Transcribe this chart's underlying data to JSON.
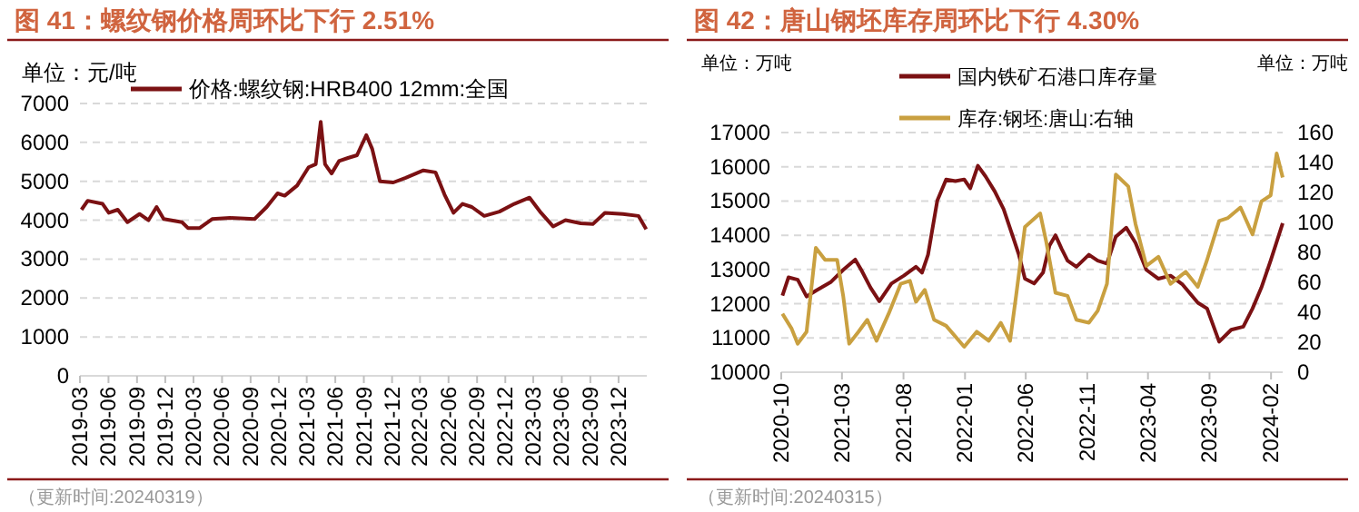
{
  "chart_data": [
    {
      "type": "line",
      "title": "图 41：螺纹钢价格周环比下行 2.51%",
      "ylabel": "单位：元/吨",
      "annotations": [
        "（更新时间:20240319）"
      ],
      "legend": "top",
      "grid": "y",
      "xlim": [
        "2019-03-01",
        "2024-03-01"
      ],
      "xticks": [
        "2019-03",
        "2019-06",
        "2019-09",
        "2019-12",
        "2020-03",
        "2020-06",
        "2020-09",
        "2020-12",
        "2021-03",
        "2021-06",
        "2021-09",
        "2021-12",
        "2022-03",
        "2022-06",
        "2022-09",
        "2022-12",
        "2023-03",
        "2023-06",
        "2023-09",
        "2023-12"
      ],
      "ylim": [
        0,
        7000
      ],
      "yticks": [
        0,
        1000,
        2000,
        3000,
        4000,
        5000,
        6000,
        7000
      ],
      "series": [
        {
          "name": "价格:螺纹钢:HRB400 12mm:全国",
          "color": "#7b1113",
          "x": [
            "2019-03-06",
            "2019-03-26",
            "2019-05-13",
            "2019-06-02",
            "2019-07-01",
            "2019-08-01",
            "2019-09-09",
            "2019-10-08",
            "2019-11-03",
            "2019-11-26",
            "2020-01-24",
            "2020-02-12",
            "2020-03-21",
            "2020-04-30",
            "2020-06-27",
            "2020-09-14",
            "2020-10-23",
            "2020-11-27",
            "2020-12-20",
            "2021-01-29",
            "2021-03-07",
            "2021-03-30",
            "2021-04-15",
            "2021-04-29",
            "2021-05-20",
            "2021-06-13",
            "2021-07-12",
            "2021-08-10",
            "2021-09-09",
            "2021-09-28",
            "2021-10-23",
            "2021-12-05",
            "2022-01-14",
            "2022-03-12",
            "2022-04-20",
            "2022-05-19",
            "2022-06-17",
            "2022-07-16",
            "2022-08-15",
            "2022-09-24",
            "2022-11-12",
            "2022-12-30",
            "2023-02-17",
            "2023-03-26",
            "2023-05-04",
            "2023-06-13",
            "2023-08-01",
            "2023-09-09",
            "2023-10-18",
            "2023-12-15",
            "2024-02-03",
            "2024-02-28"
          ],
          "values": [
            4270,
            4500,
            4420,
            4190,
            4270,
            3950,
            4160,
            4000,
            4340,
            4030,
            3950,
            3800,
            3800,
            4030,
            4060,
            4030,
            4340,
            4690,
            4630,
            4890,
            5360,
            5440,
            6530,
            5440,
            5200,
            5520,
            5600,
            5670,
            6190,
            5830,
            5000,
            4970,
            5090,
            5280,
            5230,
            4660,
            4190,
            4420,
            4340,
            4110,
            4220,
            4420,
            4580,
            4190,
            3840,
            4000,
            3920,
            3900,
            4190,
            4160,
            4110,
            3770
          ]
        }
      ]
    },
    {
      "type": "line",
      "title": "图 42：唐山钢坯库存周环比下行 4.30%",
      "ylabel": "单位：万吨",
      "y2label": "单位：万吨",
      "annotations": [
        "（更新时间:20240315）"
      ],
      "legend": "top",
      "grid": "y",
      "xlim": [
        "2020-10-01",
        "2024-03-01"
      ],
      "xticks": [
        "2020-10",
        "2021-03",
        "2021-08",
        "2022-01",
        "2022-06",
        "2022-11",
        "2023-04",
        "2023-09",
        "2024-02"
      ],
      "ylim": [
        10000,
        17000
      ],
      "yticks": [
        10000,
        11000,
        12000,
        13000,
        14000,
        15000,
        16000,
        17000
      ],
      "y2lim": [
        0,
        160
      ],
      "y2ticks": [
        0,
        20,
        40,
        60,
        80,
        100,
        120,
        140,
        160
      ],
      "series": [
        {
          "name": "国内铁矿石港口库存量",
          "color": "#7b1113",
          "x": [
            "2020-10-04",
            "2020-10-19",
            "2020-11-11",
            "2020-12-03",
            "2020-12-26",
            "2021-02-02",
            "2021-03-04",
            "2021-04-03",
            "2021-04-18",
            "2021-05-11",
            "2021-06-02",
            "2021-07-02",
            "2021-08-02",
            "2021-09-01",
            "2021-09-16",
            "2021-10-01",
            "2021-10-24",
            "2021-11-15",
            "2021-12-08",
            "2021-12-30",
            "2022-01-14",
            "2022-02-02",
            "2022-02-21",
            "2022-03-16",
            "2022-04-07",
            "2022-04-30",
            "2022-05-15",
            "2022-05-30",
            "2022-06-22",
            "2022-07-14",
            "2022-07-30",
            "2022-08-14",
            "2022-08-29",
            "2022-09-13",
            "2022-10-05",
            "2022-11-05",
            "2022-11-27",
            "2022-12-20",
            "2023-01-11",
            "2023-02-06",
            "2023-03-01",
            "2023-03-28",
            "2023-04-27",
            "2023-05-27",
            "2023-06-26",
            "2023-08-03",
            "2023-08-26",
            "2023-09-25",
            "2023-10-25",
            "2023-11-24",
            "2023-12-17",
            "2024-01-08",
            "2024-01-31",
            "2024-03-01"
          ],
          "values": [
            12240,
            12770,
            12700,
            12210,
            12380,
            12640,
            12990,
            13290,
            12990,
            12470,
            12070,
            12590,
            12820,
            13080,
            12910,
            13430,
            15010,
            15630,
            15580,
            15630,
            15370,
            16030,
            15720,
            15280,
            14760,
            13960,
            13430,
            12730,
            12590,
            12910,
            13700,
            14000,
            13610,
            13260,
            13080,
            13430,
            13260,
            13170,
            13960,
            14220,
            13780,
            12990,
            12730,
            12820,
            12560,
            12030,
            11860,
            10890,
            11240,
            11330,
            11860,
            12470,
            13260,
            14350
          ]
        },
        {
          "name": "库存:钢坯:唐山:右轴",
          "color": "#c9a040",
          "axis": "y2",
          "x": [
            "2020-10-04",
            "2020-10-27",
            "2020-11-11",
            "2020-12-03",
            "2020-12-26",
            "2021-01-18",
            "2021-02-17",
            "2021-03-04",
            "2021-03-19",
            "2021-04-11",
            "2021-05-03",
            "2021-05-26",
            "2021-06-25",
            "2021-07-25",
            "2021-08-17",
            "2021-09-01",
            "2021-09-23",
            "2021-10-16",
            "2021-11-15",
            "2021-12-30",
            "2022-01-30",
            "2022-03-01",
            "2022-03-31",
            "2022-04-23",
            "2022-05-08",
            "2022-05-30",
            "2022-07-07",
            "2022-07-22",
            "2022-08-14",
            "2022-09-13",
            "2022-10-05",
            "2022-11-05",
            "2022-11-27",
            "2022-12-20",
            "2023-01-11",
            "2023-02-11",
            "2023-03-01",
            "2023-03-28",
            "2023-04-27",
            "2023-05-27",
            "2023-07-04",
            "2023-08-03",
            "2023-08-26",
            "2023-09-25",
            "2023-10-17",
            "2023-11-17",
            "2023-12-17",
            "2024-01-08",
            "2024-01-31",
            "2024-02-15",
            "2024-03-01"
          ],
          "values": [
            39,
            29,
            19,
            27,
            83,
            75,
            75,
            51,
            19,
            27,
            35,
            21,
            39,
            59,
            61,
            47,
            55,
            35,
            31,
            17,
            27,
            21,
            33,
            21,
            51,
            97,
            106,
            87,
            53,
            51,
            35,
            33,
            41,
            59,
            132,
            124,
            99,
            71,
            77,
            59,
            67,
            57,
            75,
            101,
            103,
            110,
            92,
            114,
            118,
            146,
            130
          ]
        }
      ]
    }
  ]
}
